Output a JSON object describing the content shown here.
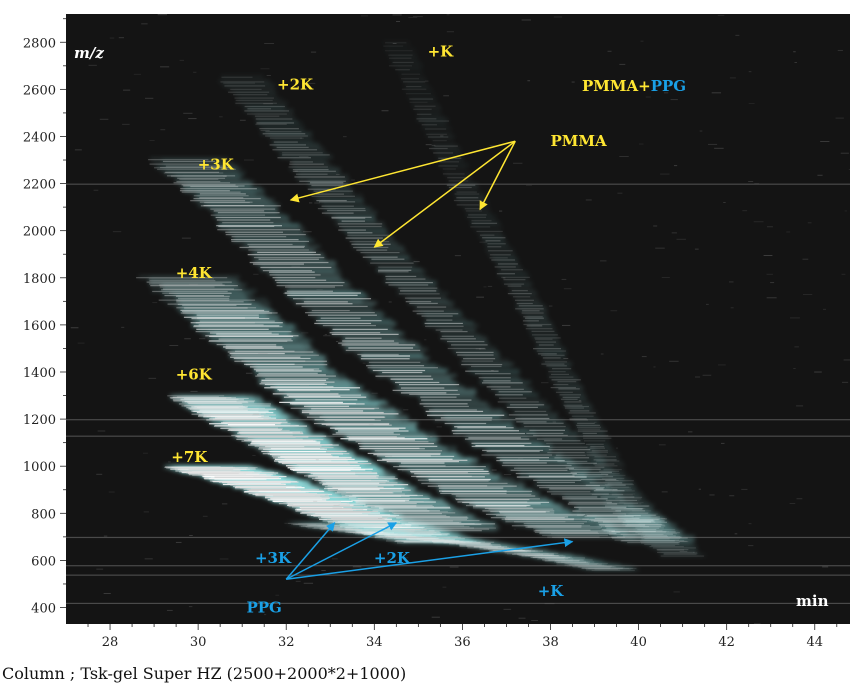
{
  "chart_data": {
    "type": "heatmap",
    "title": "",
    "xlabel": "min",
    "ylabel": "m/z",
    "xlim": [
      27,
      44.8
    ],
    "ylim": [
      330,
      2920
    ],
    "x_ticks": [
      28,
      30,
      32,
      34,
      36,
      38,
      40,
      42,
      44
    ],
    "y_ticks": [
      400,
      600,
      800,
      1000,
      1200,
      1400,
      1600,
      1800,
      2000,
      2200,
      2400,
      2600,
      2800
    ],
    "grid": false,
    "legend": {
      "position": "top-right",
      "entries": [
        {
          "name": "PMMA",
          "color": "#ffe632"
        },
        {
          "name": "PPG",
          "color": "#1aa0e6"
        }
      ],
      "joiner": "+"
    },
    "series": [
      {
        "name": "PMMA",
        "color": "#ffe632"
      },
      {
        "name": "PPG",
        "color": "#1aa0e6"
      }
    ],
    "labels": [
      {
        "text": "+K",
        "x": 35.5,
        "y": 2760,
        "color": "#ffe632"
      },
      {
        "text": "+2K",
        "x": 32.2,
        "y": 2620,
        "color": "#ffe632"
      },
      {
        "text": "+3K",
        "x": 30.4,
        "y": 2280,
        "color": "#ffe632"
      },
      {
        "text": "+4K",
        "x": 29.9,
        "y": 1820,
        "color": "#ffe632"
      },
      {
        "text": "+6K",
        "x": 29.9,
        "y": 1390,
        "color": "#ffe632"
      },
      {
        "text": "+7K",
        "x": 29.8,
        "y": 1040,
        "color": "#ffe632"
      },
      {
        "text": "+3K",
        "x": 31.7,
        "y": 610,
        "color": "#1aa0e6"
      },
      {
        "text": "+2K",
        "x": 34.4,
        "y": 610,
        "color": "#1aa0e6"
      },
      {
        "text": "+K",
        "x": 38.0,
        "y": 470,
        "color": "#1aa0e6"
      },
      {
        "text": "PPG",
        "x": 31.5,
        "y": 400,
        "color": "#1aa0e6"
      }
    ],
    "arrows": [
      {
        "label": "PMMA",
        "color": "#ffe632",
        "label_x": 38.0,
        "label_y": 2380,
        "origin": [
          37.2,
          2380
        ],
        "targets": [
          [
            32.1,
            2130
          ],
          [
            34.0,
            1930
          ],
          [
            36.4,
            2090
          ]
        ]
      },
      {
        "label": "PPG",
        "color": "#1aa0e6",
        "origin": [
          32.0,
          520
        ],
        "targets": [
          [
            33.1,
            760
          ],
          [
            34.5,
            760
          ],
          [
            38.5,
            680
          ]
        ]
      }
    ],
    "bands": [
      {
        "name": "PMMA +7K",
        "ridge": [
          [
            30.2,
            1000
          ],
          [
            31.0,
            960
          ],
          [
            32.5,
            870
          ],
          [
            34.0,
            760
          ],
          [
            35.5,
            680
          ]
        ],
        "width": 0.9,
        "intensity": 1.0
      },
      {
        "name": "PMMA +6K",
        "ridge": [
          [
            30.3,
            1300
          ],
          [
            31.2,
            1200
          ],
          [
            32.6,
            1050
          ],
          [
            34.0,
            900
          ],
          [
            36.0,
            730
          ]
        ],
        "width": 0.9,
        "intensity": 0.95
      },
      {
        "name": "PMMA +4K",
        "ridge": [
          [
            29.8,
            1800
          ],
          [
            31.0,
            1600
          ],
          [
            32.5,
            1350
          ],
          [
            34.5,
            1100
          ],
          [
            37.0,
            850
          ],
          [
            39.0,
            700
          ]
        ],
        "width": 1.0,
        "intensity": 0.8
      },
      {
        "name": "PMMA +3K",
        "ridge": [
          [
            29.8,
            2300
          ],
          [
            31.0,
            2100
          ],
          [
            32.5,
            1800
          ],
          [
            34.5,
            1450
          ],
          [
            37.0,
            1100
          ],
          [
            39.5,
            800
          ],
          [
            40.5,
            680
          ]
        ],
        "width": 0.8,
        "intensity": 0.65
      },
      {
        "name": "PMMA +2K",
        "ridge": [
          [
            31.0,
            2650
          ],
          [
            32.5,
            2300
          ],
          [
            34.0,
            1950
          ],
          [
            36.0,
            1550
          ],
          [
            38.0,
            1150
          ],
          [
            40.0,
            800
          ],
          [
            41.0,
            620
          ]
        ],
        "width": 0.5,
        "intensity": 0.38
      },
      {
        "name": "PMMA +K",
        "ridge": [
          [
            34.5,
            2800
          ],
          [
            36.0,
            2200
          ],
          [
            37.5,
            1700
          ],
          [
            38.5,
            1300
          ],
          [
            39.5,
            950
          ],
          [
            40.5,
            700
          ]
        ],
        "width": 0.3,
        "intensity": 0.22
      },
      {
        "name": "PPG",
        "ridge": [
          [
            32.5,
            760
          ],
          [
            34.0,
            720
          ],
          [
            36.0,
            680
          ],
          [
            38.0,
            620
          ],
          [
            39.5,
            560
          ]
        ],
        "width": 0.5,
        "intensity": 0.28
      }
    ],
    "streaks_mz": [
      420,
      540,
      580,
      700,
      1130,
      1200,
      2200
    ]
  },
  "caption": "Column ; Tsk-gel Super HZ (2500+2000*2+1000)",
  "colors": {
    "background": "#141414",
    "page": "#ffffff",
    "axis_text": "#222222",
    "corner_label": "#ffffff"
  }
}
